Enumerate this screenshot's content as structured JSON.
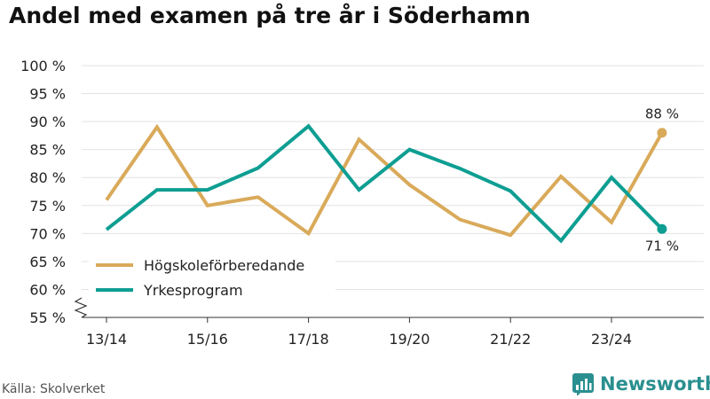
{
  "title": "Andel med examen på tre år i Söderhamn",
  "source": "Källa: Skolverket",
  "brand": {
    "name": "Newsworthy",
    "icon": "newsworthy-logo-icon"
  },
  "chart_data": {
    "type": "line",
    "title": "Andel med examen på tre år i Söderhamn",
    "x": [
      "13/14",
      "14/15",
      "15/16",
      "16/17",
      "17/18",
      "18/19",
      "19/20",
      "20/21",
      "21/22",
      "22/23",
      "23/24",
      "24/25"
    ],
    "x_tick_labels": [
      "13/14",
      "15/16",
      "17/18",
      "19/20",
      "21/22",
      "23/24"
    ],
    "y_tick_labels": [
      "55 %",
      "60 %",
      "65 %",
      "70 %",
      "75 %",
      "80 %",
      "85 %",
      "90 %",
      "95 %",
      "100 %"
    ],
    "y_ticks": [
      55,
      60,
      65,
      70,
      75,
      80,
      85,
      90,
      95,
      100
    ],
    "ylim": [
      55,
      100
    ],
    "y_axis_break": true,
    "grid": true,
    "legend_position": "bottom-left",
    "series": [
      {
        "name": "Högskoleförberedande",
        "color": "#d9aa5a",
        "values": [
          76,
          89,
          75,
          76.5,
          70,
          86.8,
          78.7,
          72.5,
          69.7,
          80.2,
          72,
          88
        ],
        "end_label": "88 %"
      },
      {
        "name": "Yrkesprogram",
        "color": "#0e9e92",
        "values": [
          70.7,
          77.8,
          77.8,
          81.7,
          89.2,
          77.8,
          85,
          81.6,
          77.6,
          68.7,
          80,
          70.8
        ],
        "end_label": "71 %"
      }
    ]
  }
}
